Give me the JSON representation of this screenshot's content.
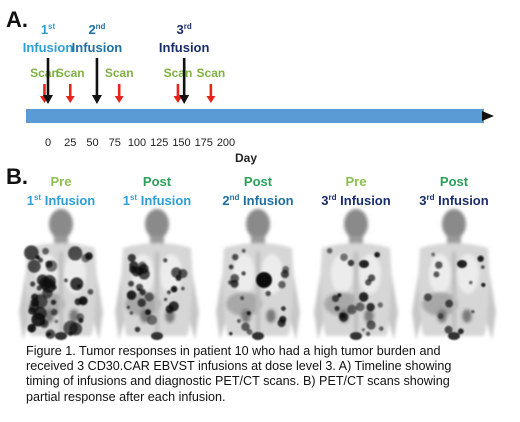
{
  "panel_a": {
    "label": "A.",
    "axis_label": "Day",
    "axis_min": 0,
    "axis_max": 200,
    "ticks": [
      0,
      25,
      50,
      75,
      100,
      125,
      150,
      175,
      200
    ],
    "events": [
      {
        "kind": "scan",
        "day": -4,
        "label": "Scan"
      },
      {
        "kind": "infusion",
        "day": 0,
        "ordinal": "1",
        "suffix": "st",
        "label": "Infusion"
      },
      {
        "kind": "scan",
        "day": 25,
        "label": "Scan"
      },
      {
        "kind": "infusion",
        "day": 55,
        "ordinal": "2",
        "suffix": "nd",
        "label": "Infusion"
      },
      {
        "kind": "scan",
        "day": 80,
        "label": "Scan"
      },
      {
        "kind": "scan",
        "day": 146,
        "label": "Scan"
      },
      {
        "kind": "infusion",
        "day": 153,
        "ordinal": "3",
        "suffix": "rd",
        "label": "Infusion"
      },
      {
        "kind": "scan",
        "day": 183,
        "label": "Scan"
      }
    ],
    "colors": {
      "bar": "#5b9bd5",
      "scan_arrow": "#e8231c",
      "infusion_arrow": "#111111",
      "scan_text": "#7fb241",
      "tick_text": "#222222"
    }
  },
  "panel_b": {
    "label": "B.",
    "scans": [
      {
        "timing": "Pre",
        "ordinal": "1",
        "suffix": "st",
        "infusion": "Infusion",
        "timing_color": "#8cbf4f",
        "infusion_color": "#2e9fd6",
        "disease": "heavy"
      },
      {
        "timing": "Post",
        "ordinal": "1",
        "suffix": "st",
        "infusion": "Infusion",
        "timing_color": "#2ca05a",
        "infusion_color": "#2e9fd6",
        "disease": "moderate"
      },
      {
        "timing": "Post",
        "ordinal": "2",
        "suffix": "nd",
        "infusion": "Infusion",
        "timing_color": "#2ca05a",
        "infusion_color": "#1f6fa3",
        "disease": "light"
      },
      {
        "timing": "Pre",
        "ordinal": "3",
        "suffix": "rd",
        "infusion": "Infusion",
        "timing_color": "#8cbf4f",
        "infusion_color": "#1a2d6b",
        "disease": "light"
      },
      {
        "timing": "Post",
        "ordinal": "3",
        "suffix": "rd",
        "infusion": "Infusion",
        "timing_color": "#2ca05a",
        "infusion_color": "#1a2d6b",
        "disease": "minimal"
      }
    ]
  },
  "caption_lines": [
    "Figure 1. Tumor responses in patient 10 who had a high tumor burden and",
    "received 3 CD30.CAR EBVST infusions at dose level 3. A) Timeline showing",
    "timing of infusions and diagnostic PET/CT scans. B) PET/CT scans showing",
    "partial response after each infusion."
  ]
}
